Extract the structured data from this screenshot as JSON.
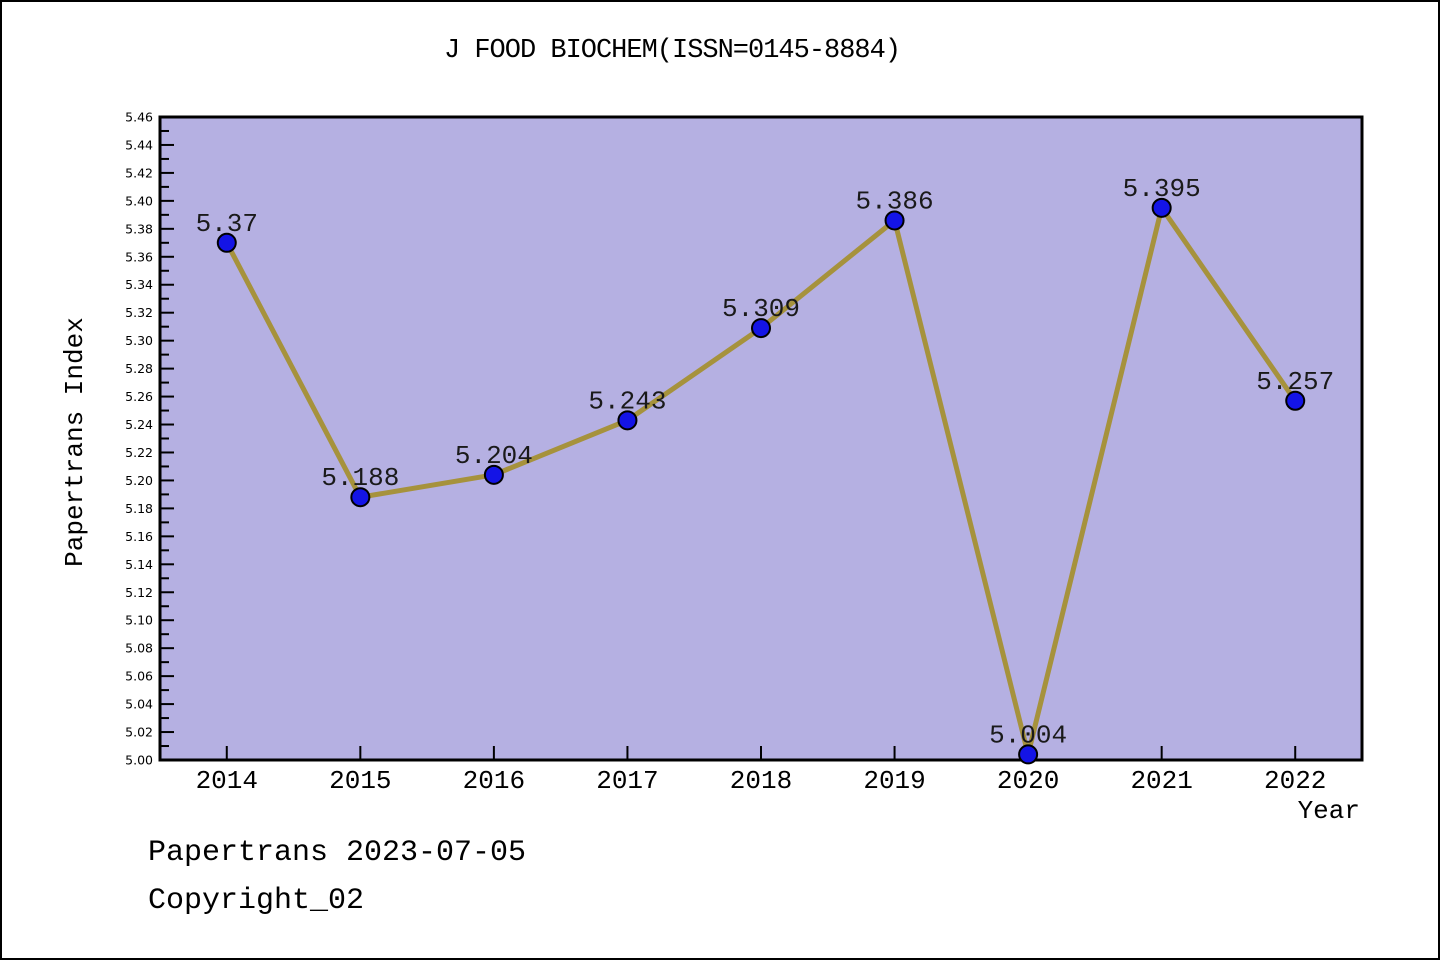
{
  "title": "J FOOD BIOCHEM(ISSN=0145-8884)",
  "footer": {
    "line1": "Papertrans 2023-07-05",
    "line2": "Copyright_02"
  },
  "colors": {
    "plot_bg": "#b5b0e2",
    "line": "#a6923c",
    "marker_fill": "#1414e6",
    "marker_edge": "#000000",
    "axis_frame": "#000000",
    "text": "#000000",
    "figure_bg": "#ffffff"
  },
  "chart_data": {
    "type": "line",
    "title": "J FOOD BIOCHEM(ISSN=0145-8884)",
    "xlabel": "Year",
    "ylabel": "Papertrans Index",
    "x": [
      2014,
      2015,
      2016,
      2017,
      2018,
      2019,
      2020,
      2021,
      2022
    ],
    "x_tick_labels": [
      "2014",
      "2015",
      "2016",
      "2017",
      "2018",
      "2019",
      "2020",
      "2021",
      "2022"
    ],
    "series": [
      {
        "name": "Papertrans Index",
        "values": [
          5.37,
          5.188,
          5.204,
          5.243,
          5.309,
          5.386,
          5.004,
          5.395,
          5.257
        ]
      }
    ],
    "point_labels": [
      "5.37",
      "5.188",
      "5.204",
      "5.243",
      "5.309",
      "5.386",
      "5.004",
      "5.395",
      "5.257"
    ],
    "xlim": [
      2013.5,
      2022.5
    ],
    "ylim": [
      5.0,
      5.46
    ],
    "y_tick_labels": [
      "5.00",
      "5.02",
      "5.04",
      "5.06",
      "5.08",
      "5.10",
      "5.12",
      "5.14",
      "5.16",
      "5.18",
      "5.20",
      "5.22",
      "5.24",
      "5.26",
      "5.28",
      "5.30",
      "5.32",
      "5.34",
      "5.36",
      "5.38",
      "5.40",
      "5.42",
      "5.44",
      "5.46"
    ],
    "y_minor_step": 0.01,
    "grid": false,
    "legend": "none",
    "marker": "circle"
  }
}
